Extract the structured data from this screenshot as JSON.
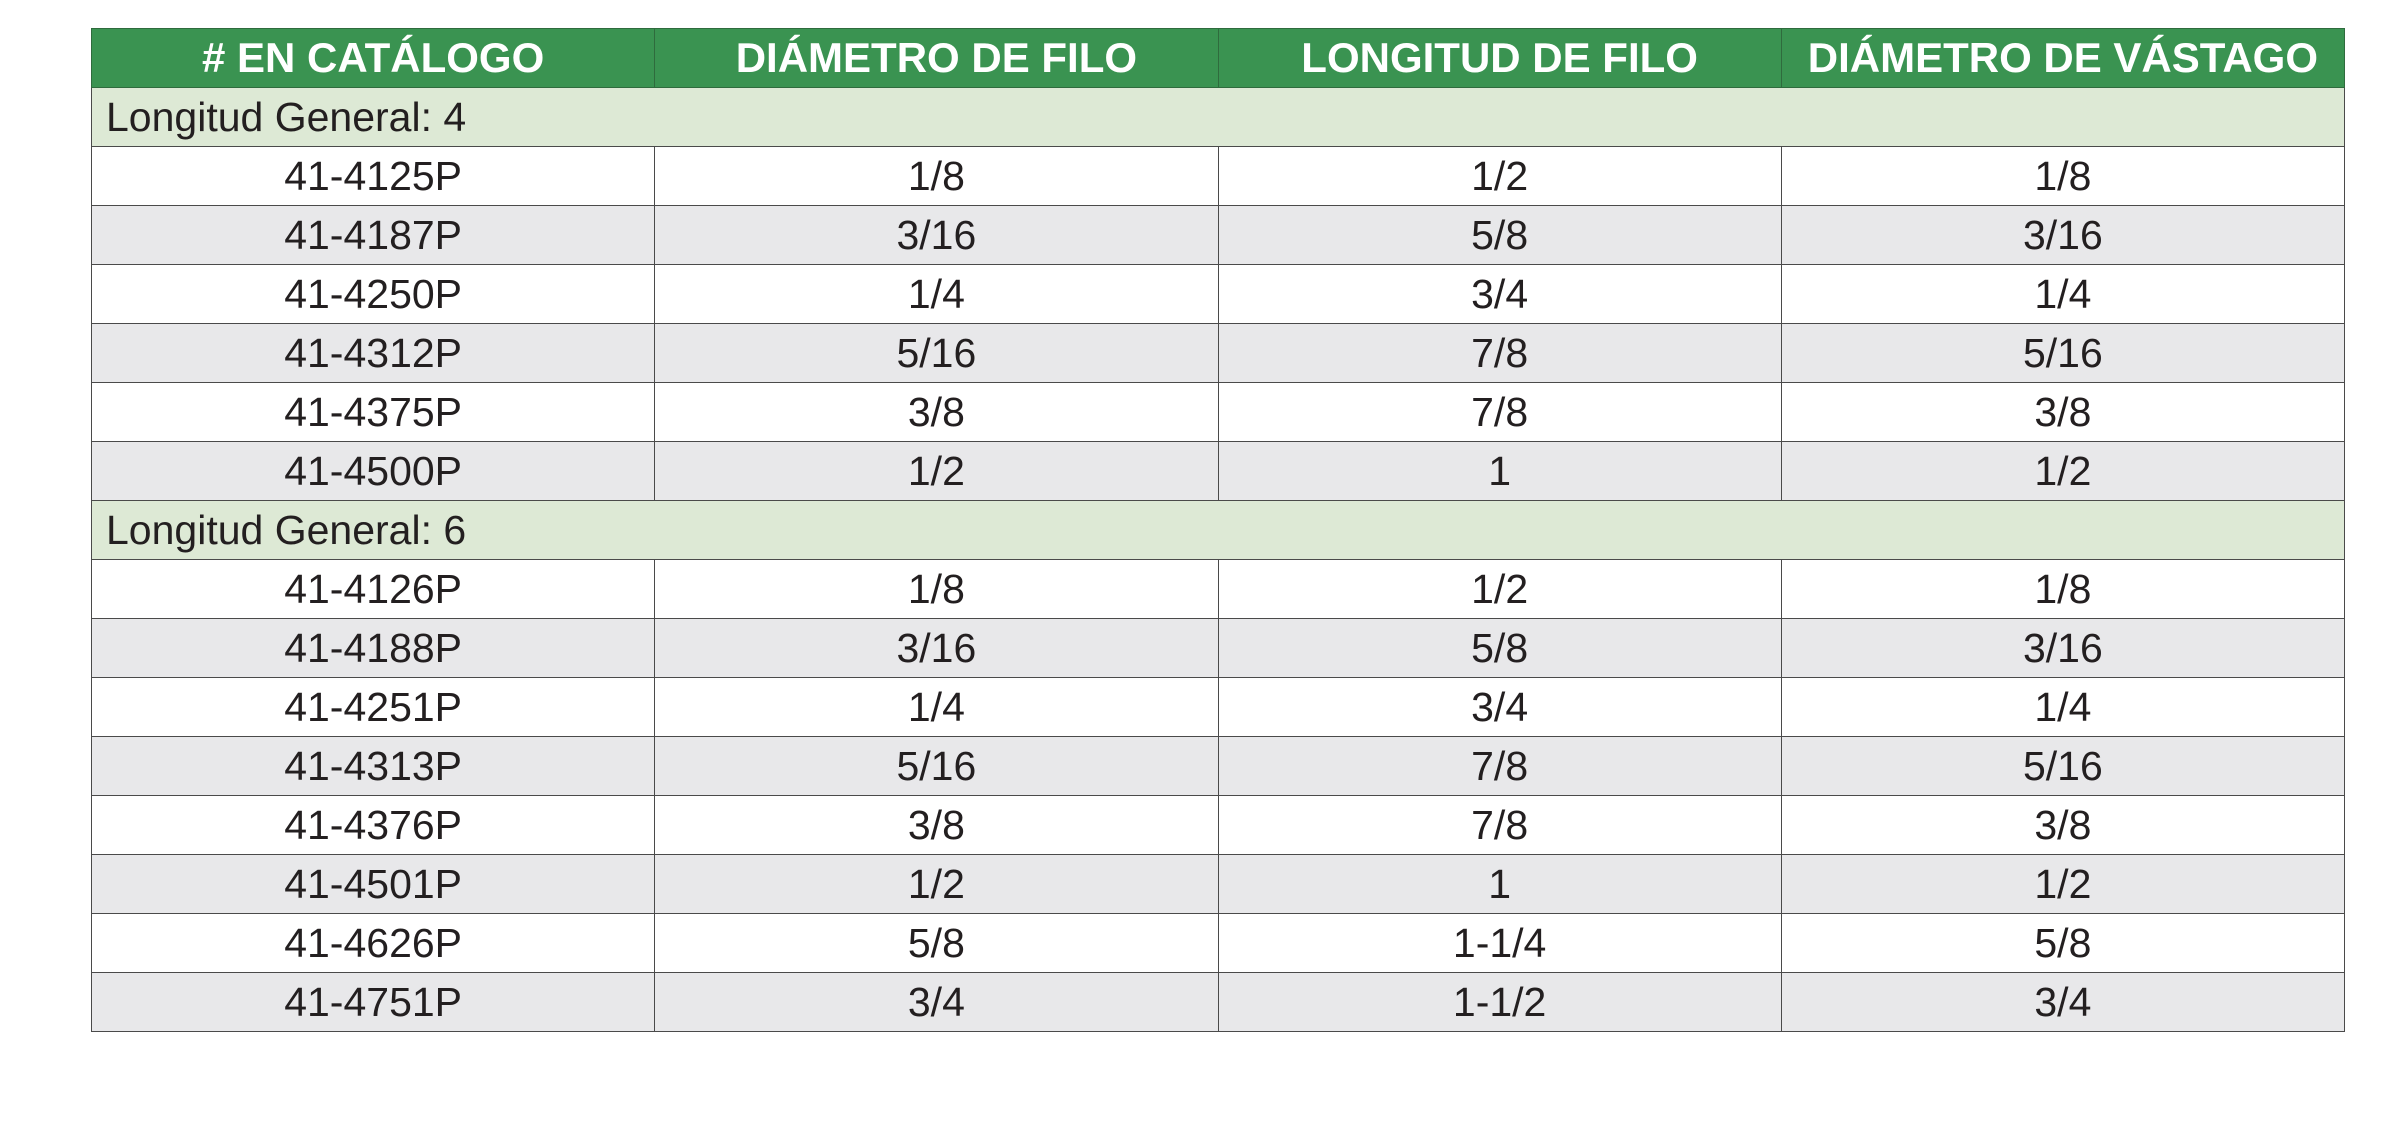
{
  "table": {
    "headers": [
      "# EN CATÁLOGO",
      "DIÁMETRO DE FILO",
      "LONGITUD DE FILO",
      "DIÁMETRO DE VÁSTAGO"
    ],
    "groups": [
      {
        "label": "Longitud General: 4",
        "rows": [
          [
            "41-4125P",
            "1/8",
            "1/2",
            "1/8"
          ],
          [
            "41-4187P",
            "3/16",
            "5/8",
            "3/16"
          ],
          [
            "41-4250P",
            "1/4",
            "3/4",
            "1/4"
          ],
          [
            "41-4312P",
            "5/16",
            "7/8",
            "5/16"
          ],
          [
            "41-4375P",
            "3/8",
            "7/8",
            "3/8"
          ],
          [
            "41-4500P",
            "1/2",
            "1",
            "1/2"
          ]
        ]
      },
      {
        "label": "Longitud General: 6",
        "rows": [
          [
            "41-4126P",
            "1/8",
            "1/2",
            "1/8"
          ],
          [
            "41-4188P",
            "3/16",
            "5/8",
            "3/16"
          ],
          [
            "41-4251P",
            "1/4",
            "3/4",
            "1/4"
          ],
          [
            "41-4313P",
            "5/16",
            "7/8",
            "5/16"
          ],
          [
            "41-4376P",
            "3/8",
            "7/8",
            "3/8"
          ],
          [
            "41-4501P",
            "1/2",
            "1",
            "1/2"
          ],
          [
            "41-4626P",
            "5/8",
            "1-1/4",
            "5/8"
          ],
          [
            "41-4751P",
            "3/4",
            "1-1/2",
            "3/4"
          ]
        ]
      }
    ]
  },
  "colors": {
    "header_bg": "#3a9351",
    "header_text": "#ffffff",
    "group_bg": "#dde9d5",
    "row_alt_bg": "#e8e8ea",
    "row_bg": "#ffffff",
    "text": "#231f20"
  }
}
